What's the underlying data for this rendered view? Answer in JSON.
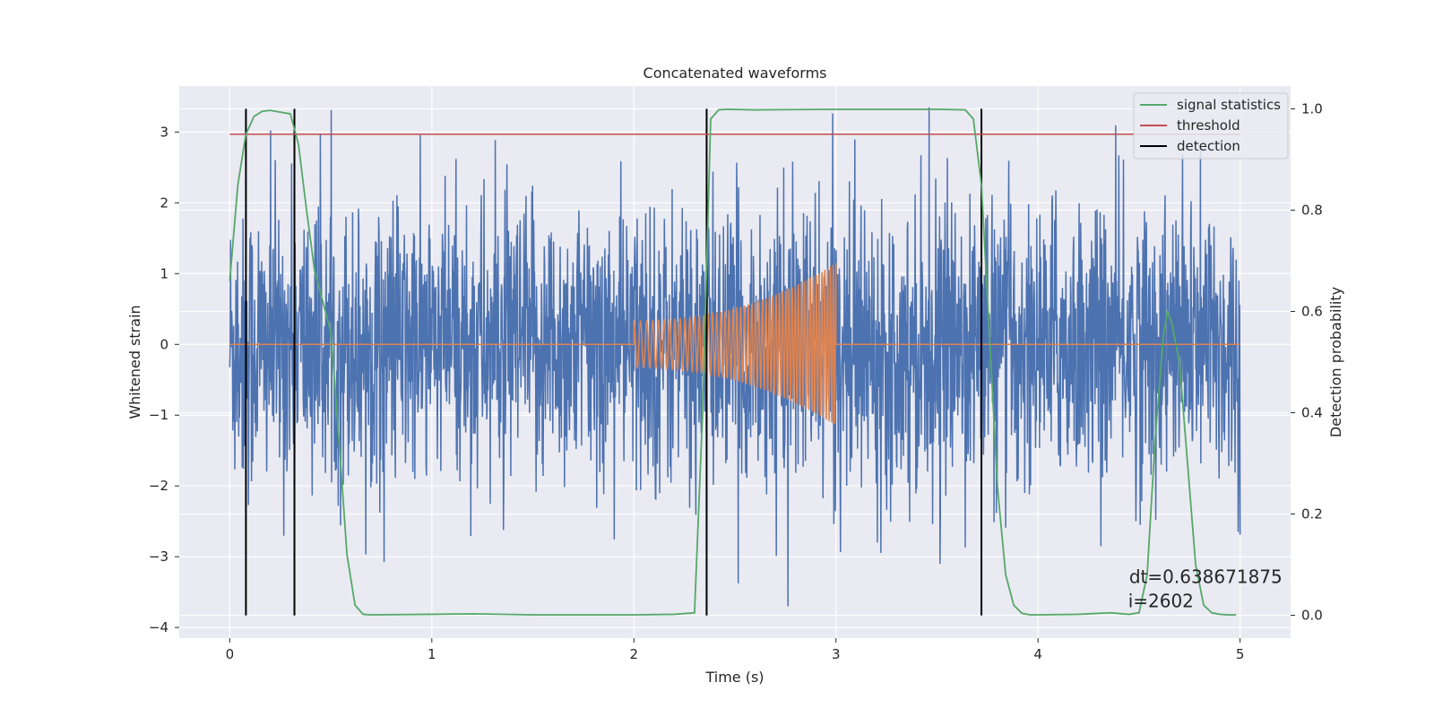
{
  "chart_data": {
    "type": "line",
    "title": "Concatenated waveforms",
    "xlabel": "Time (s)",
    "ylabel": "Whitened strain",
    "y2label": "Detection probability",
    "xlim": [
      -0.25,
      5.25
    ],
    "ylim": [
      -4.15,
      3.65
    ],
    "y2lim": [
      -0.045,
      1.045
    ],
    "xticks": [
      0,
      1,
      2,
      3,
      4,
      5
    ],
    "yticks": [
      -4,
      -3,
      -2,
      -1,
      0,
      1,
      2,
      3
    ],
    "y2ticks": [
      0.0,
      0.2,
      0.4,
      0.6,
      0.8,
      1.0
    ],
    "y2ticklabels": [
      "0.0",
      "0.2",
      "0.4",
      "0.6",
      "0.8",
      "1.0"
    ],
    "grid": true,
    "legend_placement": "top-right",
    "colors": {
      "background": "#eaeaf2",
      "strain": "#4c72b0",
      "signal": "#dd8452",
      "statistics": "#55a868",
      "threshold": "#c44e52",
      "detection": "#000000"
    },
    "strain": {
      "x_range": [
        0,
        5
      ],
      "amplitude_std": 1.0,
      "peak_range": [
        -3.7,
        3.35
      ]
    },
    "injected_signal": {
      "t_start": 2.0,
      "t_end": 3.0,
      "amp_start": 0.33,
      "amp_end": 1.15
    },
    "statistics": {
      "x": [
        0,
        0.04,
        0.08,
        0.12,
        0.16,
        0.2,
        0.3,
        0.34,
        0.38,
        0.42,
        0.46,
        0.5,
        0.54,
        0.58,
        0.62,
        0.66,
        0.7,
        1.0,
        1.2,
        1.5,
        2.0,
        2.2,
        2.3,
        2.34,
        2.38,
        2.42,
        2.46,
        2.6,
        3.0,
        3.5,
        3.64,
        3.68,
        3.72,
        3.76,
        3.8,
        3.84,
        3.88,
        3.92,
        3.96,
        4.0,
        4.2,
        4.3,
        4.36,
        4.45,
        4.5,
        4.54,
        4.58,
        4.62,
        4.64,
        4.66,
        4.7,
        4.74,
        4.78,
        4.82,
        4.86,
        4.9,
        4.94,
        4.98
      ],
      "y": [
        0.66,
        0.85,
        0.95,
        0.985,
        0.995,
        0.997,
        0.99,
        0.93,
        0.8,
        0.68,
        0.62,
        0.56,
        0.35,
        0.12,
        0.02,
        0.002,
        0.001,
        0.002,
        0.003,
        0.001,
        0.001,
        0.002,
        0.005,
        0.4,
        0.98,
        0.998,
        0.999,
        0.998,
        0.999,
        0.999,
        0.998,
        0.98,
        0.85,
        0.55,
        0.25,
        0.08,
        0.02,
        0.004,
        0.001,
        0.001,
        0.002,
        0.004,
        0.005,
        0.002,
        0.005,
        0.08,
        0.35,
        0.55,
        0.6,
        0.58,
        0.5,
        0.3,
        0.1,
        0.02,
        0.005,
        0.002,
        0.001,
        0.001
      ],
      "name": "signal statistics"
    },
    "threshold": {
      "value": 0.95,
      "x_range": [
        0,
        5
      ],
      "name": "threshold"
    },
    "detections": {
      "x": [
        0.08,
        0.32,
        2.36,
        3.72
      ],
      "y2_range": [
        0,
        1
      ],
      "name": "detection"
    },
    "annotation": {
      "dt": "dt=0.638671875",
      "i": "i=2602",
      "x": 4.83,
      "y": -3.45
    }
  }
}
